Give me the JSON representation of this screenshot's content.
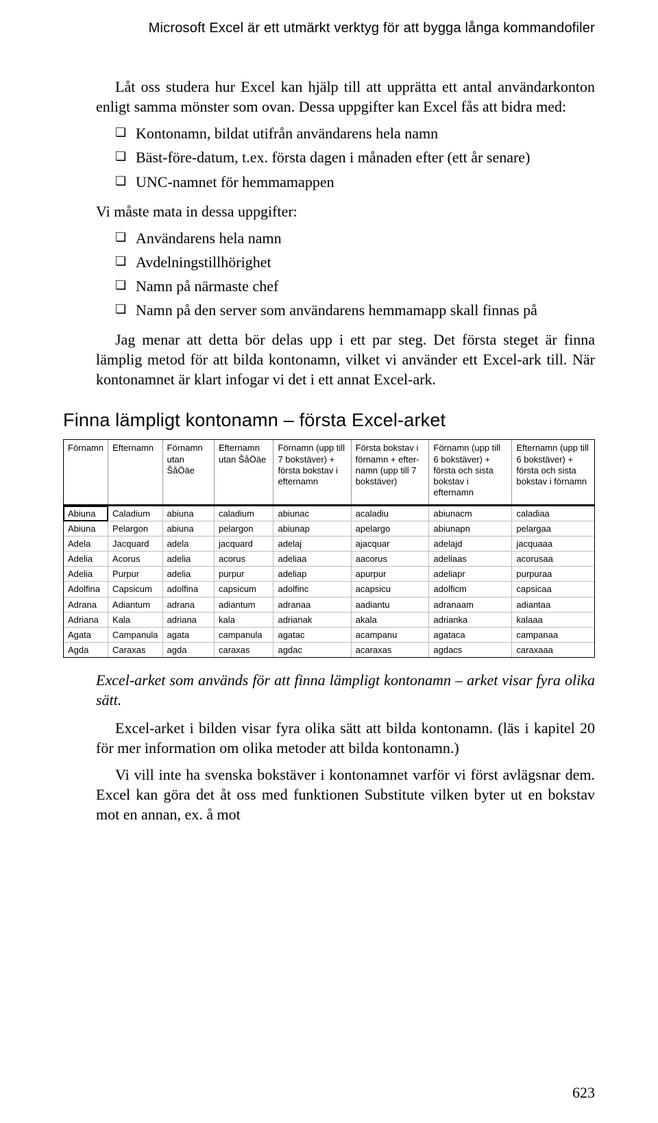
{
  "running_head": "Microsoft Excel är ett utmärkt verktyg för att bygga långa kommandofiler",
  "intro": "Låt oss studera hur Excel kan hjälp till att upprätta ett antal användarkonton enligt samma mönster som ovan. Dessa uppgifter kan Excel fås att bidra med:",
  "bullets1": {
    "b0": "Kontonamn, bildat utifrån användarens hela namn",
    "b1": "Bäst-före-datum, t.ex. första dagen i månaden efter (ett år senare)",
    "b2": "UNC-namnet för hemmamappen"
  },
  "mid_line": "Vi måste mata in dessa uppgifter:",
  "bullets2": {
    "b0": "Användarens hela namn",
    "b1": "Avdelningstillhörighet",
    "b2": "Namn på närmaste chef",
    "b3": "Namn på den server som användarens hemmamapp skall finnas på"
  },
  "para_after": "Jag menar att detta bör delas upp i ett par steg. Det första steget är finna lämplig metod för att bilda kontonamn, vilket vi använder ett Excel-ark till. När kontonamnet är klart infogar vi det i ett annat Excel-ark.",
  "section_head": "Finna lämpligt kontonamn – första Excel-arket",
  "table": {
    "headers": {
      "h0": "Förnamn",
      "h1": "Efternamn",
      "h2": "Förnamn utan ŠåÖäe",
      "h3": "Efternamn utan ŠåÖäe",
      "h4": "Förnamn (upp till 7 bokstäver) + första bokstav i efternamn",
      "h5": "Första bokstav i förnamn + efter-namn (upp till 7 bokstäver)",
      "h6": "Förnamn (upp till 6 bokstäver) + första och sista bokstav i efternamn",
      "h7": "Efternamn (upp till 6 bokstäver) + första och sista bokstav i förnamn"
    },
    "rows": [
      [
        "Abiuna",
        "Caladium",
        "abiuna",
        "caladium",
        "abiunac",
        "acaladiu",
        "abiunacm",
        "caladiaa"
      ],
      [
        "Abiuna",
        "Pelargon",
        "abiuna",
        "pelargon",
        "abiunap",
        "apelargo",
        "abiunapn",
        "pelargaa"
      ],
      [
        "Adela",
        "Jacquard",
        "adela",
        "jacquard",
        "adelaj",
        "ajacquar",
        "adelajd",
        "jacquaaa"
      ],
      [
        "Adelia",
        "Acorus",
        "adelia",
        "acorus",
        "adeliaa",
        "aacorus",
        "adeliaas",
        "acorusaa"
      ],
      [
        "Adelia",
        "Purpur",
        "adelia",
        "purpur",
        "adeliap",
        "apurpur",
        "adeliapr",
        "purpuraa"
      ],
      [
        "Adolfina",
        "Capsicum",
        "adolfina",
        "capsicum",
        "adolfinc",
        "acapsicu",
        "adolficm",
        "capsicaa"
      ],
      [
        "Adrana",
        "Adiantum",
        "adrana",
        "adiantum",
        "adranaa",
        "aadiantu",
        "adranaam",
        "adiantaa"
      ],
      [
        "Adriana",
        "Kala",
        "adriana",
        "kala",
        "adrianak",
        "akala",
        "adrianka",
        "kalaaa"
      ],
      [
        "Agata",
        "Campanula",
        "agata",
        "campanula",
        "agatac",
        "acampanu",
        "agataca",
        "campanaa"
      ],
      [
        "Agda",
        "Caraxas",
        "agda",
        "caraxas",
        "agdac",
        "acaraxas",
        "agdacs",
        "caraxaaa"
      ]
    ]
  },
  "caption": "Excel-arket som används för att finna lämpligt kontonamn – arket visar fyra olika sätt.",
  "para_end1": "Excel-arket i bilden visar fyra olika sätt att bilda kontonamn. (läs i kapitel 20 för mer information om olika metoder att bilda kontonamn.)",
  "para_end2": "Vi vill inte ha svenska bokstäver i kontonamnet varför vi först avlägsnar dem. Excel kan göra det åt oss med funktionen Substitute vilken byter ut en bokstav mot en annan, ex. å mot",
  "page_number": "623"
}
